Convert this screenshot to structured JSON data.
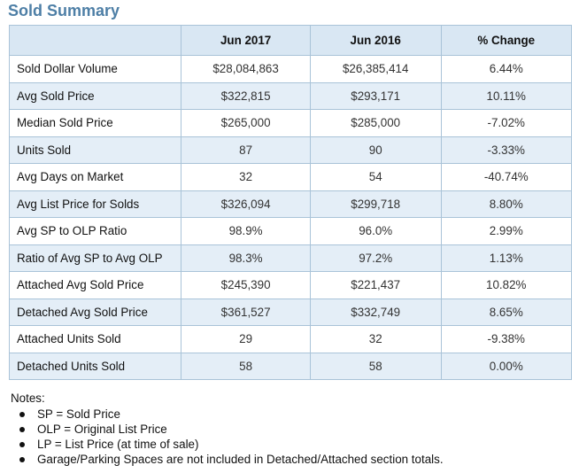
{
  "title": "Sold Summary",
  "table": {
    "headers": [
      "",
      "Jun 2017",
      "Jun 2016",
      "% Change"
    ],
    "rows": [
      {
        "label": "Sold Dollar Volume",
        "jun2017": "$28,084,863",
        "jun2016": "$26,385,414",
        "change": "6.44%"
      },
      {
        "label": "Avg Sold Price",
        "jun2017": "$322,815",
        "jun2016": "$293,171",
        "change": "10.11%"
      },
      {
        "label": "Median Sold Price",
        "jun2017": "$265,000",
        "jun2016": "$285,000",
        "change": "-7.02%"
      },
      {
        "label": "Units Sold",
        "jun2017": "87",
        "jun2016": "90",
        "change": "-3.33%"
      },
      {
        "label": "Avg Days on Market",
        "jun2017": "32",
        "jun2016": "54",
        "change": "-40.74%"
      },
      {
        "label": "Avg List Price for Solds",
        "jun2017": "$326,094",
        "jun2016": "$299,718",
        "change": "8.80%"
      },
      {
        "label": "Avg SP to OLP Ratio",
        "jun2017": "98.9%",
        "jun2016": "96.0%",
        "change": "2.99%"
      },
      {
        "label": "Ratio of Avg SP to Avg OLP",
        "jun2017": "98.3%",
        "jun2016": "97.2%",
        "change": "1.13%"
      },
      {
        "label": "Attached Avg Sold Price",
        "jun2017": "$245,390",
        "jun2016": "$221,437",
        "change": "10.82%"
      },
      {
        "label": "Detached Avg Sold Price",
        "jun2017": "$361,527",
        "jun2016": "$332,749",
        "change": "8.65%"
      },
      {
        "label": "Attached Units Sold",
        "jun2017": "29",
        "jun2016": "32",
        "change": "-9.38%"
      },
      {
        "label": "Detached Units Sold",
        "jun2017": "58",
        "jun2016": "58",
        "change": "0.00%"
      }
    ]
  },
  "notes": {
    "title": "Notes:",
    "items": [
      "SP = Sold Price",
      "OLP = Original List Price",
      "LP = List Price (at time of sale)",
      "Garage/Parking Spaces are not included in Detached/Attached section totals."
    ]
  },
  "colors": {
    "title": "#4e7fa6",
    "header_bg": "#d9e7f3",
    "alt_row_bg": "#e4eef7",
    "border": "#a9c3d8"
  }
}
